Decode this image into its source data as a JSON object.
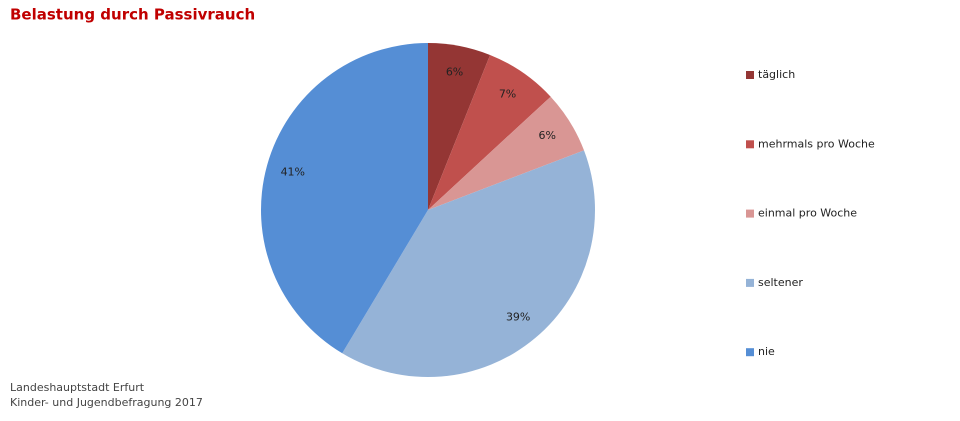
{
  "chart_data": {
    "type": "pie",
    "title": "Belastung durch Passivrauch",
    "categories": [
      "täglich",
      "mehrmals pro Woche",
      "einmal pro Woche",
      "seltener",
      "nie"
    ],
    "values": [
      6,
      7,
      6,
      39,
      41
    ],
    "value_labels": [
      "6%",
      "7%",
      "6%",
      "39%",
      "41%"
    ],
    "colors": [
      "#943634",
      "#c0504d",
      "#d99694",
      "#95b3d7",
      "#558ed5"
    ],
    "source": [
      "Landeshauptstadt Erfurt",
      "Kinder- und Jugendbefragung 2017"
    ]
  }
}
